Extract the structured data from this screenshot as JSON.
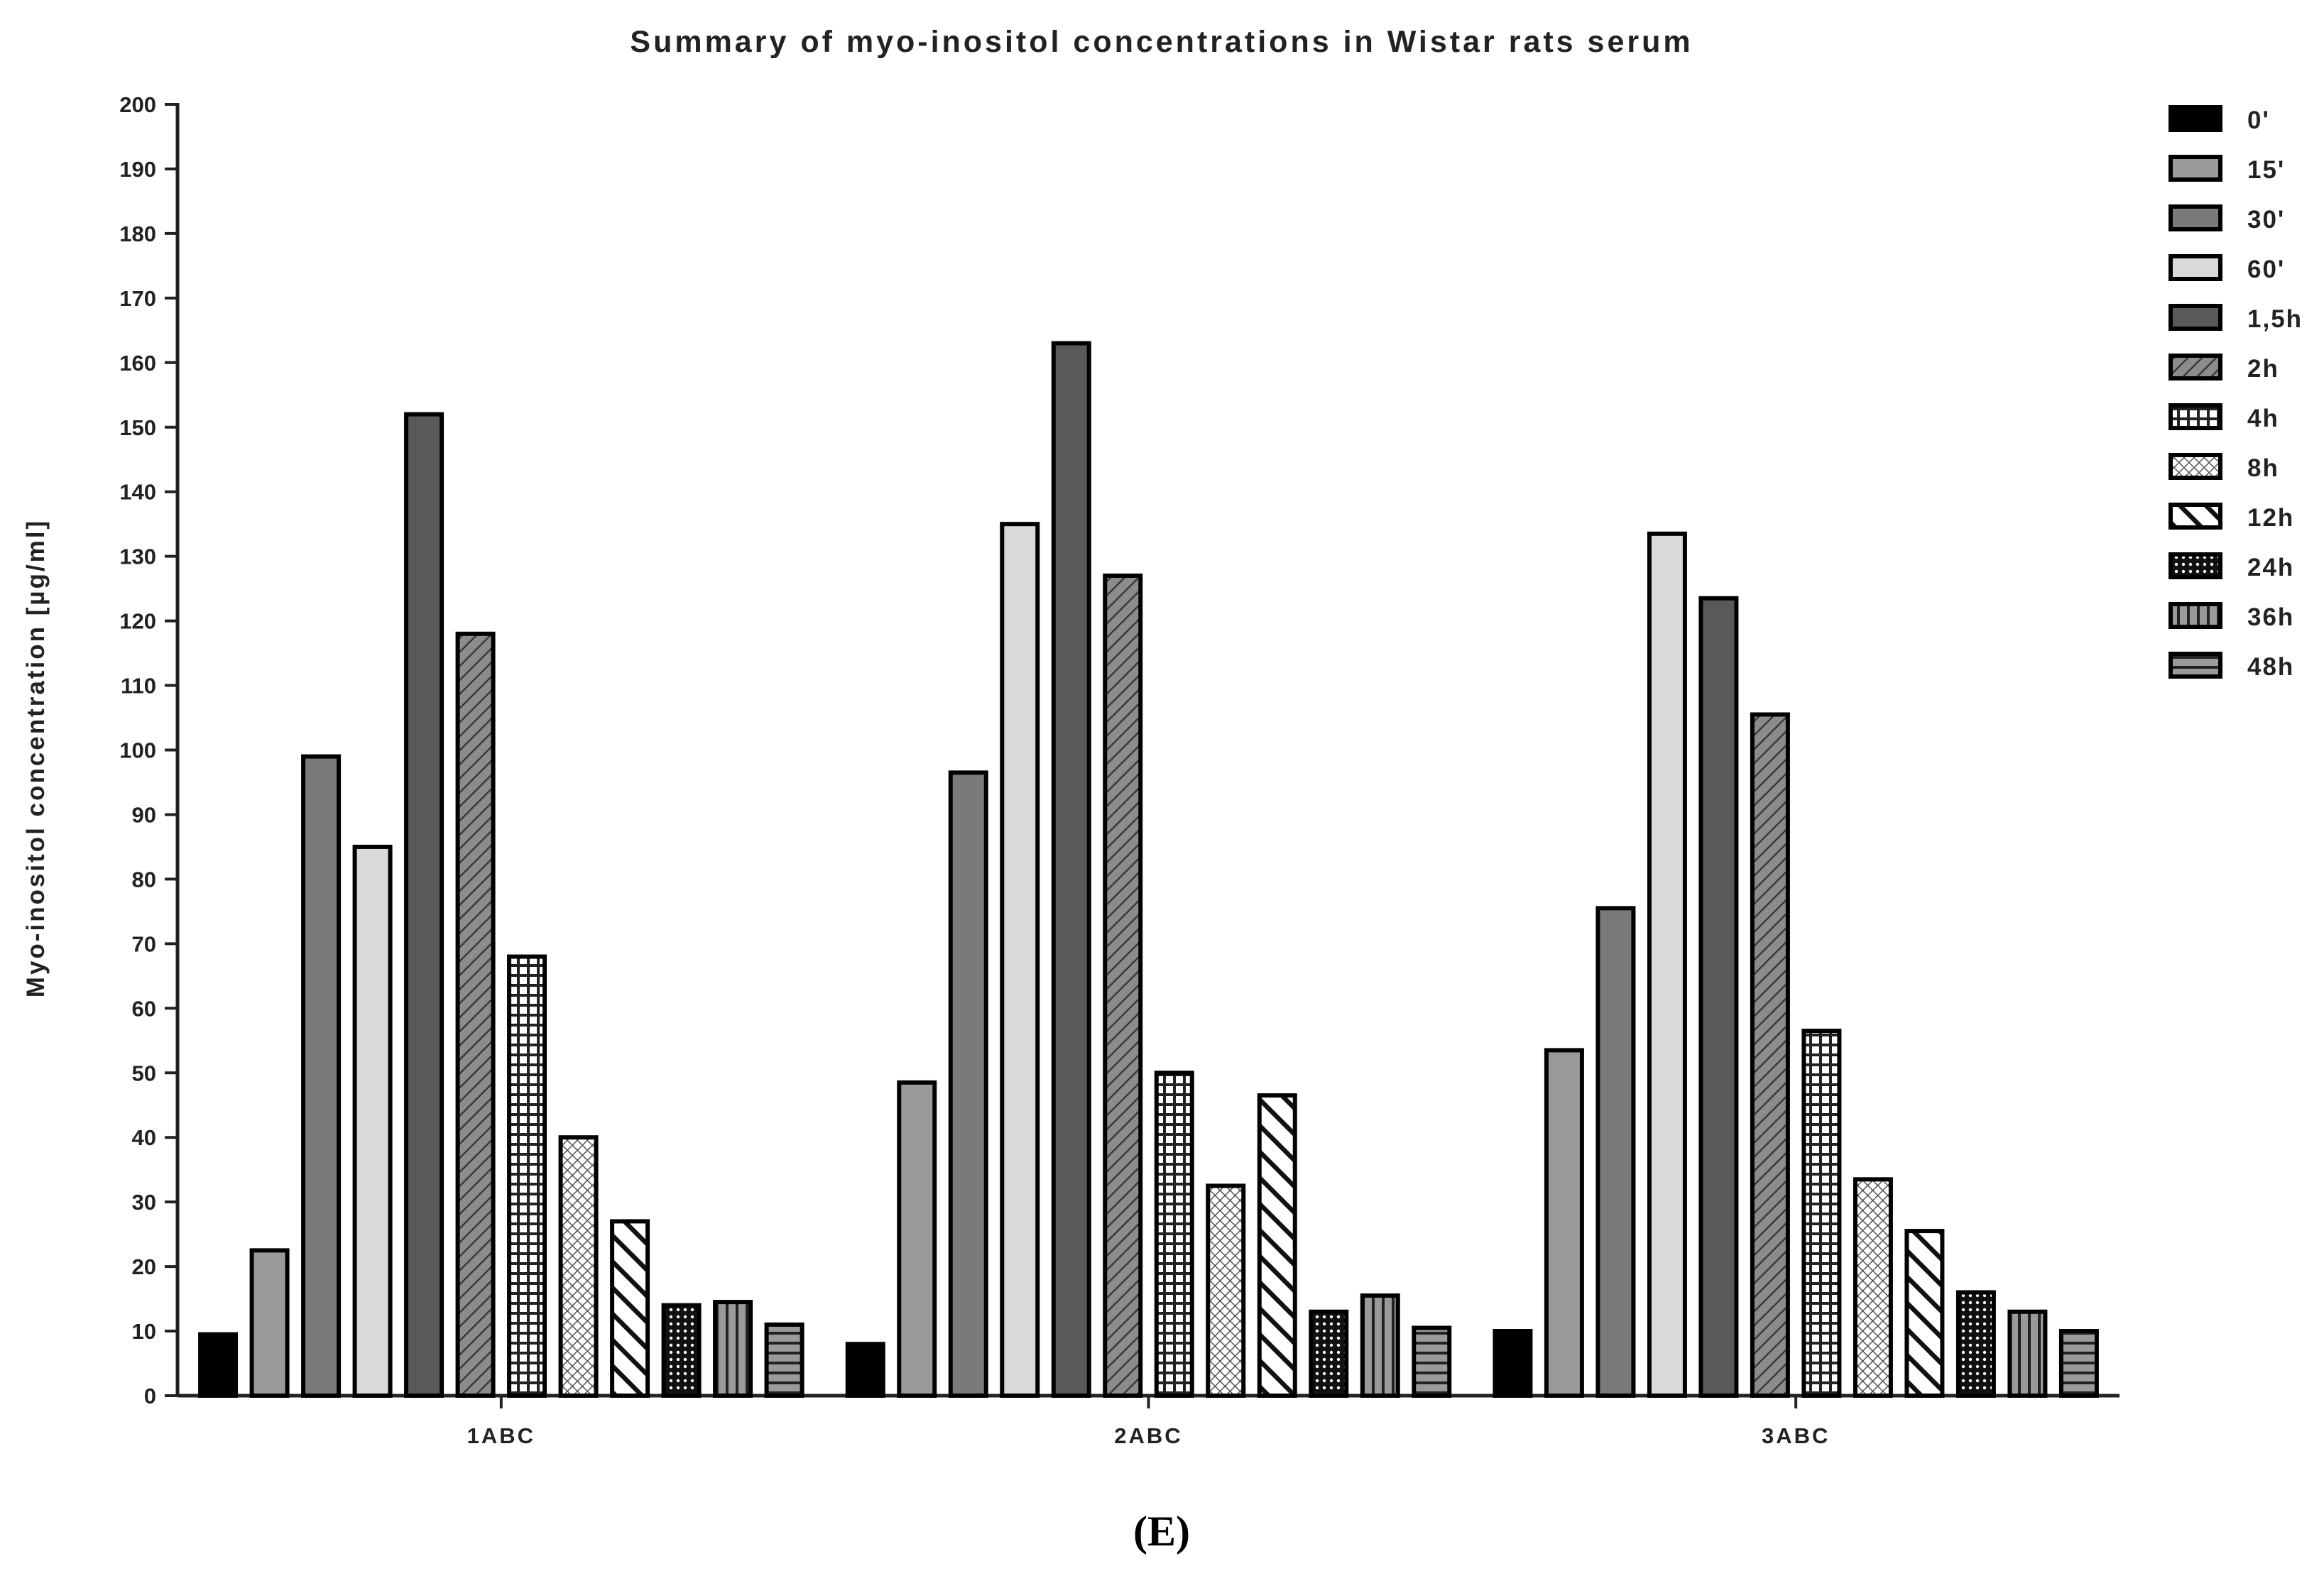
{
  "chart_data": {
    "type": "bar",
    "title": "Summary of myo-inositol concentrations in Wistar rats serum",
    "xlabel": "",
    "ylabel": "Myo-inositol concentration [µg/ml]",
    "ylim": [
      0,
      200
    ],
    "yticks": [
      0,
      10,
      20,
      30,
      40,
      50,
      60,
      70,
      80,
      90,
      100,
      110,
      120,
      130,
      140,
      150,
      160,
      170,
      180,
      190,
      200
    ],
    "categories": [
      "1ABC",
      "2ABC",
      "3ABC"
    ],
    "series": [
      {
        "name": "0'",
        "values": [
          9.5,
          8,
          10
        ],
        "fill": "#000000",
        "pattern": "none"
      },
      {
        "name": "15'",
        "values": [
          22.5,
          48.5,
          53.5
        ],
        "fill": "#9a9a9a",
        "pattern": "none"
      },
      {
        "name": "30'",
        "values": [
          99,
          96.5,
          75.5
        ],
        "fill": "#7a7a7a",
        "pattern": "none"
      },
      {
        "name": "60'",
        "values": [
          85,
          135,
          133.5
        ],
        "fill": "#d9d9d9",
        "pattern": "none"
      },
      {
        "name": "1,5h",
        "values": [
          152,
          163,
          123.5
        ],
        "fill": "#595959",
        "pattern": "none"
      },
      {
        "name": "2h",
        "values": [
          118,
          127,
          105.5
        ],
        "fill": "#8c8c8c",
        "pattern": "diag-left"
      },
      {
        "name": "4h",
        "values": [
          68,
          50,
          56.5
        ],
        "fill": "#3c3c3c",
        "pattern": "grid"
      },
      {
        "name": "8h",
        "values": [
          40,
          32.5,
          33.5
        ],
        "fill": "#ffffff",
        "pattern": "crosshatch"
      },
      {
        "name": "12h",
        "values": [
          27,
          46.5,
          25.5
        ],
        "fill": "#ffffff",
        "pattern": "diag-right-bold"
      },
      {
        "name": "24h",
        "values": [
          14,
          13,
          16
        ],
        "fill": "#111111",
        "pattern": "dots"
      },
      {
        "name": "36h",
        "values": [
          14.5,
          15.5,
          13
        ],
        "fill": "#9a9a9a",
        "pattern": "vlines"
      },
      {
        "name": "48h",
        "values": [
          11,
          10.5,
          10
        ],
        "fill": "#9a9a9a",
        "pattern": "hlines"
      }
    ],
    "legend_position": "right",
    "grid": false
  },
  "panel_label": "(E)"
}
